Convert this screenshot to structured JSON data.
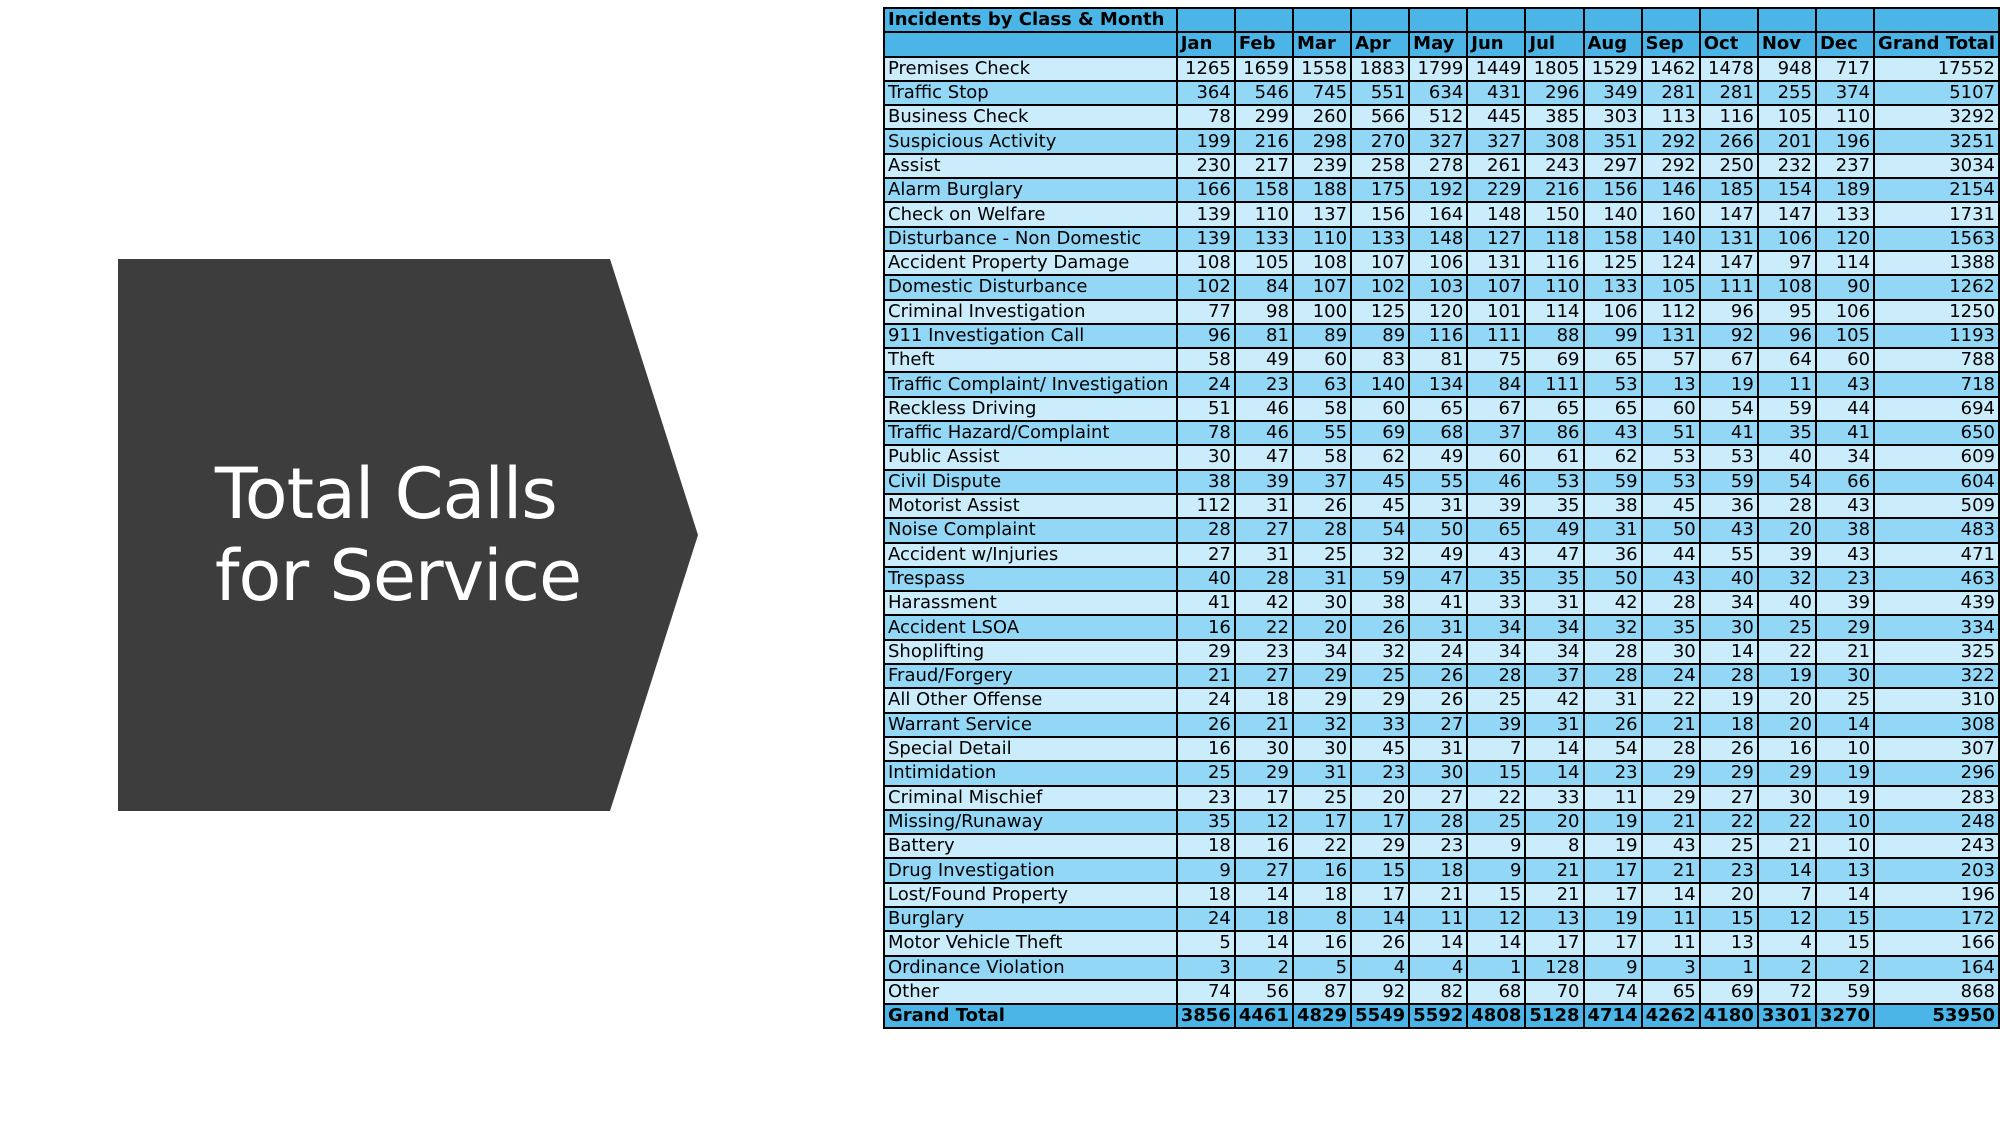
{
  "banner": {
    "title": "Total Calls\nfor Service",
    "fill": "#3d3d3e"
  },
  "table": {
    "title": "Incidents by Class & Month",
    "months": [
      "Jan",
      "Feb",
      "Mar",
      "Apr",
      "May",
      "Jun",
      "Jul",
      "Aug",
      "Sep",
      "Oct",
      "Nov",
      "Dec"
    ],
    "grand_total_header": "Grand Total",
    "rows": [
      {
        "label": "Premises Check",
        "values": [
          1265,
          1659,
          1558,
          1883,
          1799,
          1449,
          1805,
          1529,
          1462,
          1478,
          948,
          717
        ],
        "total": 17552
      },
      {
        "label": "Traffic Stop",
        "values": [
          364,
          546,
          745,
          551,
          634,
          431,
          296,
          349,
          281,
          281,
          255,
          374
        ],
        "total": 5107
      },
      {
        "label": "Business Check",
        "values": [
          78,
          299,
          260,
          566,
          512,
          445,
          385,
          303,
          113,
          116,
          105,
          110
        ],
        "total": 3292
      },
      {
        "label": "Suspicious Activity",
        "values": [
          199,
          216,
          298,
          270,
          327,
          327,
          308,
          351,
          292,
          266,
          201,
          196
        ],
        "total": 3251
      },
      {
        "label": "Assist",
        "values": [
          230,
          217,
          239,
          258,
          278,
          261,
          243,
          297,
          292,
          250,
          232,
          237
        ],
        "total": 3034
      },
      {
        "label": "Alarm Burglary",
        "values": [
          166,
          158,
          188,
          175,
          192,
          229,
          216,
          156,
          146,
          185,
          154,
          189
        ],
        "total": 2154
      },
      {
        "label": "Check on Welfare",
        "values": [
          139,
          110,
          137,
          156,
          164,
          148,
          150,
          140,
          160,
          147,
          147,
          133
        ],
        "total": 1731
      },
      {
        "label": "Disturbance - Non Domestic",
        "values": [
          139,
          133,
          110,
          133,
          148,
          127,
          118,
          158,
          140,
          131,
          106,
          120
        ],
        "total": 1563
      },
      {
        "label": "Accident Property Damage",
        "values": [
          108,
          105,
          108,
          107,
          106,
          131,
          116,
          125,
          124,
          147,
          97,
          114
        ],
        "total": 1388
      },
      {
        "label": "Domestic Disturbance",
        "values": [
          102,
          84,
          107,
          102,
          103,
          107,
          110,
          133,
          105,
          111,
          108,
          90
        ],
        "total": 1262
      },
      {
        "label": "Criminal Investigation",
        "values": [
          77,
          98,
          100,
          125,
          120,
          101,
          114,
          106,
          112,
          96,
          95,
          106
        ],
        "total": 1250
      },
      {
        "label": "911 Investigation Call",
        "values": [
          96,
          81,
          89,
          89,
          116,
          111,
          88,
          99,
          131,
          92,
          96,
          105
        ],
        "total": 1193
      },
      {
        "label": "Theft",
        "values": [
          58,
          49,
          60,
          83,
          81,
          75,
          69,
          65,
          57,
          67,
          64,
          60
        ],
        "total": 788
      },
      {
        "label": "Traffic Complaint/ Investigation",
        "values": [
          24,
          23,
          63,
          140,
          134,
          84,
          111,
          53,
          13,
          19,
          11,
          43
        ],
        "total": 718
      },
      {
        "label": "Reckless Driving",
        "values": [
          51,
          46,
          58,
          60,
          65,
          67,
          65,
          65,
          60,
          54,
          59,
          44
        ],
        "total": 694
      },
      {
        "label": "Traffic Hazard/Complaint",
        "values": [
          78,
          46,
          55,
          69,
          68,
          37,
          86,
          43,
          51,
          41,
          35,
          41
        ],
        "total": 650
      },
      {
        "label": "Public Assist",
        "values": [
          30,
          47,
          58,
          62,
          49,
          60,
          61,
          62,
          53,
          53,
          40,
          34
        ],
        "total": 609
      },
      {
        "label": "Civil Dispute",
        "values": [
          38,
          39,
          37,
          45,
          55,
          46,
          53,
          59,
          53,
          59,
          54,
          66
        ],
        "total": 604
      },
      {
        "label": "Motorist Assist",
        "values": [
          112,
          31,
          26,
          45,
          31,
          39,
          35,
          38,
          45,
          36,
          28,
          43
        ],
        "total": 509
      },
      {
        "label": "Noise Complaint",
        "values": [
          28,
          27,
          28,
          54,
          50,
          65,
          49,
          31,
          50,
          43,
          20,
          38
        ],
        "total": 483
      },
      {
        "label": "Accident w/Injuries",
        "values": [
          27,
          31,
          25,
          32,
          49,
          43,
          47,
          36,
          44,
          55,
          39,
          43
        ],
        "total": 471
      },
      {
        "label": "Trespass",
        "values": [
          40,
          28,
          31,
          59,
          47,
          35,
          35,
          50,
          43,
          40,
          32,
          23
        ],
        "total": 463
      },
      {
        "label": "Harassment",
        "values": [
          41,
          42,
          30,
          38,
          41,
          33,
          31,
          42,
          28,
          34,
          40,
          39
        ],
        "total": 439
      },
      {
        "label": "Accident LSOA",
        "values": [
          16,
          22,
          20,
          26,
          31,
          34,
          34,
          32,
          35,
          30,
          25,
          29
        ],
        "total": 334
      },
      {
        "label": "Shoplifting",
        "values": [
          29,
          23,
          34,
          32,
          24,
          34,
          34,
          28,
          30,
          14,
          22,
          21
        ],
        "total": 325
      },
      {
        "label": "Fraud/Forgery",
        "values": [
          21,
          27,
          29,
          25,
          26,
          28,
          37,
          28,
          24,
          28,
          19,
          30
        ],
        "total": 322
      },
      {
        "label": "All Other Offense",
        "values": [
          24,
          18,
          29,
          29,
          26,
          25,
          42,
          31,
          22,
          19,
          20,
          25
        ],
        "total": 310
      },
      {
        "label": "Warrant Service",
        "values": [
          26,
          21,
          32,
          33,
          27,
          39,
          31,
          26,
          21,
          18,
          20,
          14
        ],
        "total": 308
      },
      {
        "label": "Special Detail",
        "values": [
          16,
          30,
          30,
          45,
          31,
          7,
          14,
          54,
          28,
          26,
          16,
          10
        ],
        "total": 307
      },
      {
        "label": "Intimidation",
        "values": [
          25,
          29,
          31,
          23,
          30,
          15,
          14,
          23,
          29,
          29,
          29,
          19
        ],
        "total": 296
      },
      {
        "label": "Criminal Mischief",
        "values": [
          23,
          17,
          25,
          20,
          27,
          22,
          33,
          11,
          29,
          27,
          30,
          19
        ],
        "total": 283
      },
      {
        "label": "Missing/Runaway",
        "values": [
          35,
          12,
          17,
          17,
          28,
          25,
          20,
          19,
          21,
          22,
          22,
          10
        ],
        "total": 248
      },
      {
        "label": "Battery",
        "values": [
          18,
          16,
          22,
          29,
          23,
          9,
          8,
          19,
          43,
          25,
          21,
          10
        ],
        "total": 243
      },
      {
        "label": "Drug Investigation",
        "values": [
          9,
          27,
          16,
          15,
          18,
          9,
          21,
          17,
          21,
          23,
          14,
          13
        ],
        "total": 203
      },
      {
        "label": "Lost/Found Property",
        "values": [
          18,
          14,
          18,
          17,
          21,
          15,
          21,
          17,
          14,
          20,
          7,
          14
        ],
        "total": 196
      },
      {
        "label": "Burglary",
        "values": [
          24,
          18,
          8,
          14,
          11,
          12,
          13,
          19,
          11,
          15,
          12,
          15
        ],
        "total": 172
      },
      {
        "label": "Motor Vehicle Theft",
        "values": [
          5,
          14,
          16,
          26,
          14,
          14,
          17,
          17,
          11,
          13,
          4,
          15
        ],
        "total": 166
      },
      {
        "label": "Ordinance Violation",
        "values": [
          3,
          2,
          5,
          4,
          4,
          1,
          128,
          9,
          3,
          1,
          2,
          2
        ],
        "total": 164
      },
      {
        "label": "Other",
        "values": [
          74,
          56,
          87,
          92,
          82,
          68,
          70,
          74,
          65,
          69,
          72,
          59
        ],
        "total": 868
      }
    ],
    "grand_total": {
      "label": "Grand Total",
      "values": [
        3856,
        4461,
        4829,
        5549,
        5592,
        4808,
        5128,
        4714,
        4262,
        4180,
        3301,
        3270
      ],
      "total": 53950
    }
  }
}
